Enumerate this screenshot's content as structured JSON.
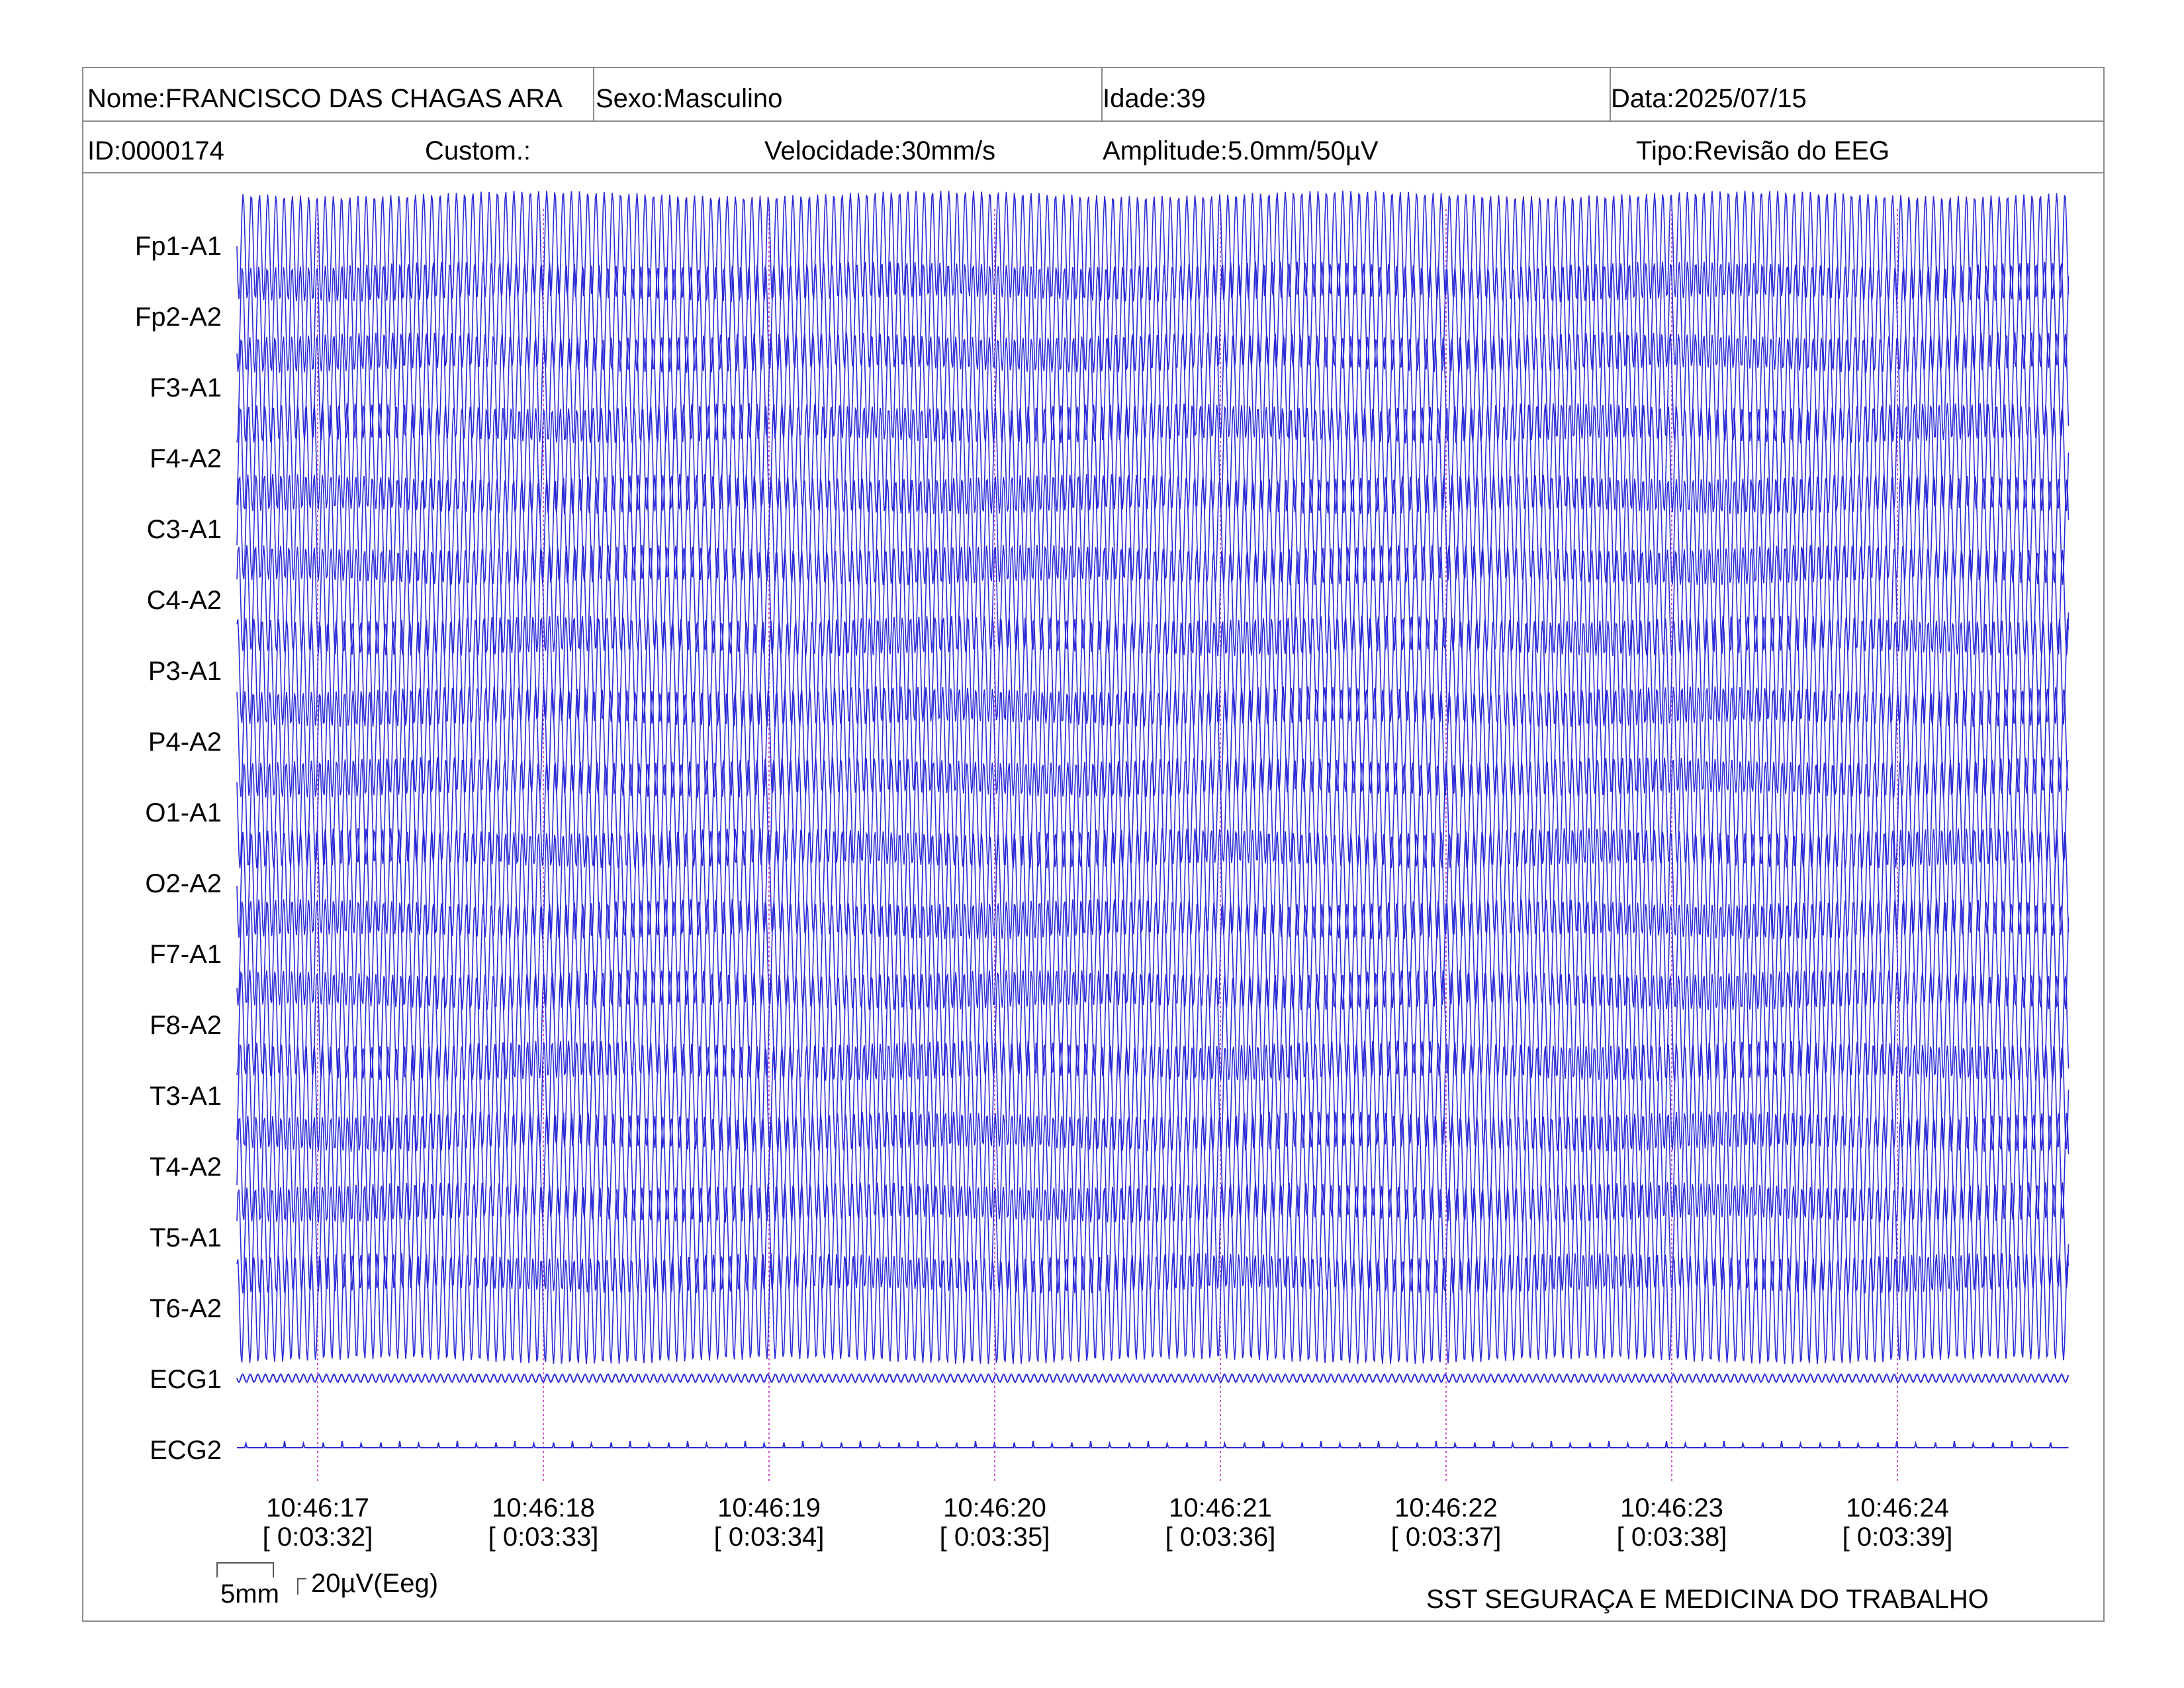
{
  "header": {
    "name": "Nome:FRANCISCO DAS CHAGAS ARA",
    "sex": "Sexo:Masculino",
    "age": "Idade:39",
    "date": "Data:2025/07/15",
    "id": "ID:0000174",
    "custom": "Custom.:",
    "speed": "Velocidade:30mm/s",
    "amplitude": "Amplitude:5.0mm/50µV",
    "type": "Tipo:Revisão do EEG"
  },
  "channels": [
    "Fp1-A1",
    "Fp2-A2",
    "F3-A1",
    "F4-A2",
    "C3-A1",
    "C4-A2",
    "P3-A1",
    "P4-A2",
    "O1-A1",
    "O2-A2",
    "F7-A1",
    "F8-A2",
    "T3-A1",
    "T4-A2",
    "T5-A1",
    "T6-A2",
    "ECG1",
    "ECG2"
  ],
  "time_marks": [
    {
      "time": "10:46:17",
      "elapsed": "[ 0:03:32]"
    },
    {
      "time": "10:46:18",
      "elapsed": "[ 0:03:33]"
    },
    {
      "time": "10:46:19",
      "elapsed": "[ 0:03:34]"
    },
    {
      "time": "10:46:20",
      "elapsed": "[ 0:03:35]"
    },
    {
      "time": "10:46:21",
      "elapsed": "[ 0:03:36]"
    },
    {
      "time": "10:46:22",
      "elapsed": "[ 0:03:37]"
    },
    {
      "time": "10:46:23",
      "elapsed": "[ 0:03:38]"
    },
    {
      "time": "10:46:24",
      "elapsed": "[ 0:03:39]"
    }
  ],
  "scale": {
    "time_scale": "5mm",
    "amp_scale": "20µV(Eeg)"
  },
  "footer": {
    "company": "SST SEGURAÇA E MEDICINA DO TRABALHO"
  },
  "colors": {
    "trace": "#2b2bd6",
    "marker": "#d050d0",
    "border": "#8c8c8c"
  }
}
